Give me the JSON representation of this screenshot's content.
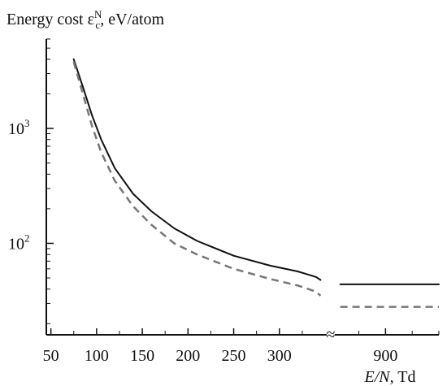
{
  "chart_data": {
    "type": "line",
    "ylabel": {
      "prefix": "Energy cost ",
      "symbol": "ε",
      "superscript": "N",
      "subscript": "c",
      "suffix": ", eV/atom"
    },
    "xlabel": {
      "italic": "E/N",
      "suffix": ", Td"
    },
    "y_scale": "log",
    "ylim": [
      16,
      6000
    ],
    "y_ticks": [
      {
        "value": 1000,
        "base": "10",
        "exp": "3"
      },
      {
        "value": 100,
        "base": "10",
        "exp": "2"
      }
    ],
    "x_break": {
      "symbol": "≈",
      "left_range": [
        45,
        350
      ],
      "right_range": [
        805,
        1000
      ]
    },
    "x_ticks": [
      {
        "value": 50,
        "label": "50"
      },
      {
        "value": 100,
        "label": "100"
      },
      {
        "value": 150,
        "label": "150"
      },
      {
        "value": 200,
        "label": "200"
      },
      {
        "value": 250,
        "label": "250"
      },
      {
        "value": 300,
        "label": "300"
      },
      {
        "value": 900,
        "label": "900"
      }
    ],
    "grid": false,
    "series": [
      {
        "style": "solid",
        "color": "#111111",
        "x": [
          75,
          85,
          95,
          105,
          120,
          140,
          160,
          185,
          210,
          250,
          290,
          320,
          340,
          345
        ],
        "y": [
          4000,
          2300,
          1300,
          800,
          450,
          270,
          190,
          135,
          105,
          78,
          64,
          57,
          51,
          48
        ],
        "x2": [
          815,
          1000
        ],
        "y2": [
          44,
          44
        ]
      },
      {
        "style": "dashed",
        "color": "#777777",
        "x": [
          75,
          85,
          95,
          105,
          120,
          140,
          160,
          185,
          210,
          250,
          290,
          320,
          340,
          345
        ],
        "y": [
          3800,
          2000,
          1050,
          620,
          350,
          210,
          145,
          100,
          80,
          60,
          49,
          43,
          38,
          35
        ],
        "x2": [
          815,
          1000
        ],
        "y2": [
          28,
          28
        ]
      }
    ]
  }
}
